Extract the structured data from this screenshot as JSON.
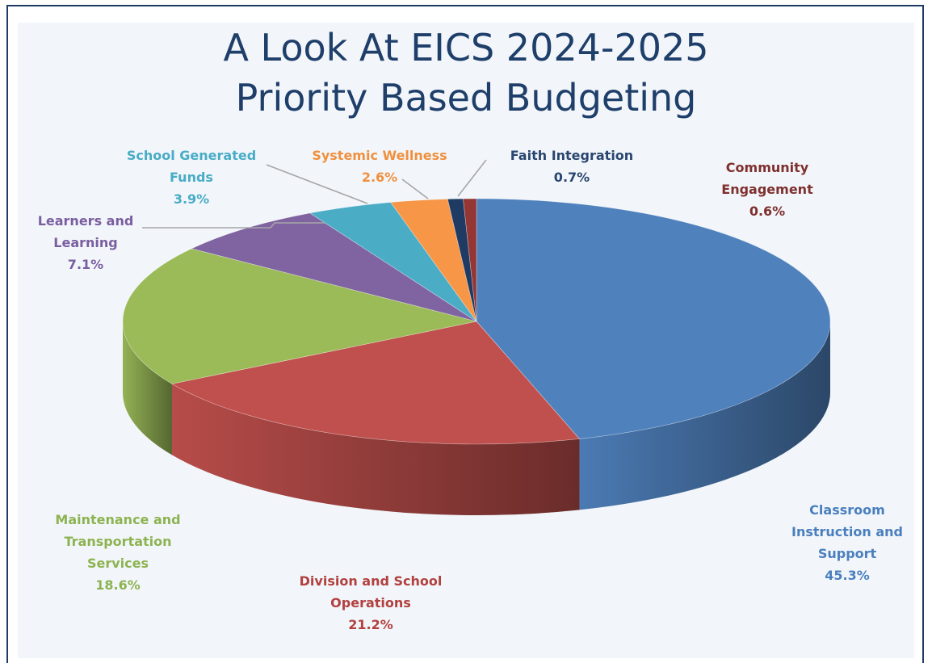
{
  "title": {
    "line1": "A Look At EICS 2024-2025",
    "line2": "Priority Based Budgeting"
  },
  "chart_data": {
    "type": "pie",
    "title": "A Look At EICS 2024-2025 Priority Based Budgeting",
    "style": "3d-exploded-none",
    "slices": [
      {
        "label_lines": [
          "Classroom",
          "Instruction and",
          "Support"
        ],
        "label": "Classroom Instruction and Support",
        "value": 45.3,
        "value_text": "45.3%",
        "color": "#4f81bd",
        "label_color": "#4a7fbe"
      },
      {
        "label_lines": [
          "Division and School",
          "Operations"
        ],
        "label": "Division and School Operations",
        "value": 21.2,
        "value_text": "21.2%",
        "color": "#c0504d",
        "label_color": "#b2403e"
      },
      {
        "label_lines": [
          "Maintenance and",
          "Transportation",
          "Services"
        ],
        "label": "Maintenance and Transportation Services",
        "value": 18.6,
        "value_text": "18.6%",
        "color": "#9bbb59",
        "label_color": "#8db351"
      },
      {
        "label_lines": [
          "Learners and",
          "Learning"
        ],
        "label": "Learners and Learning",
        "value": 7.1,
        "value_text": "7.1%",
        "color": "#8064a2",
        "label_color": "#7a5ea0"
      },
      {
        "label_lines": [
          "School Generated",
          "Funds"
        ],
        "label": "School Generated Funds",
        "value": 3.9,
        "value_text": "3.9%",
        "color": "#4bacc6",
        "label_color": "#49acc6"
      },
      {
        "label_lines": [
          "Systemic Wellness"
        ],
        "label": "Systemic Wellness",
        "value": 2.6,
        "value_text": "2.6%",
        "color": "#f79646",
        "label_color": "#f0903e"
      },
      {
        "label_lines": [
          "Faith Integration"
        ],
        "label": "Faith Integration",
        "value": 0.7,
        "value_text": "0.7%",
        "color": "#1f3b63",
        "label_color": "#2a4670"
      },
      {
        "label_lines": [
          "Community",
          "Engagement"
        ],
        "label": "Community Engagement",
        "value": 0.6,
        "value_text": "0.6%",
        "color": "#943634",
        "label_color": "#7f2f2e"
      }
    ]
  }
}
